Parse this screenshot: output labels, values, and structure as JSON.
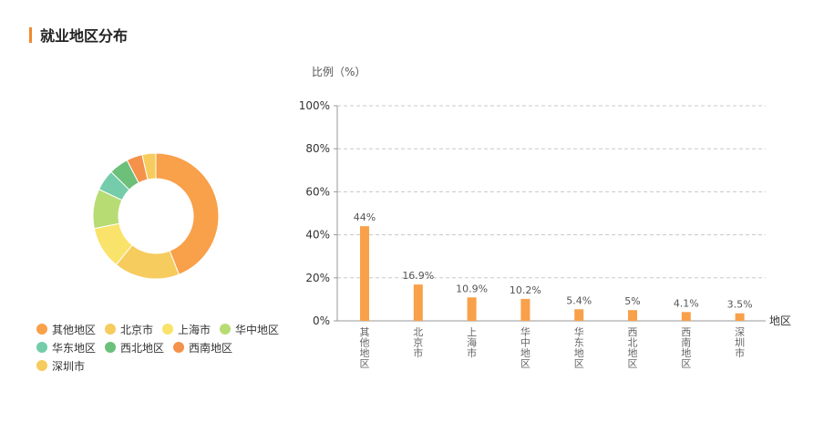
{
  "page": {
    "title": "就业地区分布"
  },
  "chart_data": [
    {
      "type": "pie",
      "variant": "donut",
      "categories": [
        "其他地区",
        "北京市",
        "上海市",
        "华中地区",
        "华东地区",
        "西北地区",
        "西南地区",
        "深圳市"
      ],
      "values": [
        44,
        16.9,
        10.9,
        10.2,
        5.4,
        5,
        4.1,
        3.5
      ],
      "colors": [
        "#f9a04a",
        "#f6cc5e",
        "#f9e36a",
        "#b8dc74",
        "#74ccaa",
        "#6cc07a",
        "#f4924b",
        "#f6cc5e"
      ],
      "legend_position": "bottom-left"
    },
    {
      "type": "bar",
      "categories": [
        "其他地区",
        "北京市",
        "上海市",
        "华中地区",
        "华东地区",
        "西北地区",
        "西南地区",
        "深圳市"
      ],
      "values": [
        44,
        16.9,
        10.9,
        10.2,
        5.4,
        5,
        4.1,
        3.5
      ],
      "data_labels": [
        "44%",
        "16.9%",
        "10.9%",
        "10.2%",
        "5.4%",
        "5%",
        "4.1%",
        "3.5%"
      ],
      "ylabel": "比例（%）",
      "xlabel": "地区",
      "ylim": [
        0,
        100
      ],
      "yticks": [
        "0%",
        "20%",
        "40%",
        "60%",
        "80%",
        "100%"
      ],
      "grid": true,
      "bar_color": "#f9a04a"
    }
  ]
}
